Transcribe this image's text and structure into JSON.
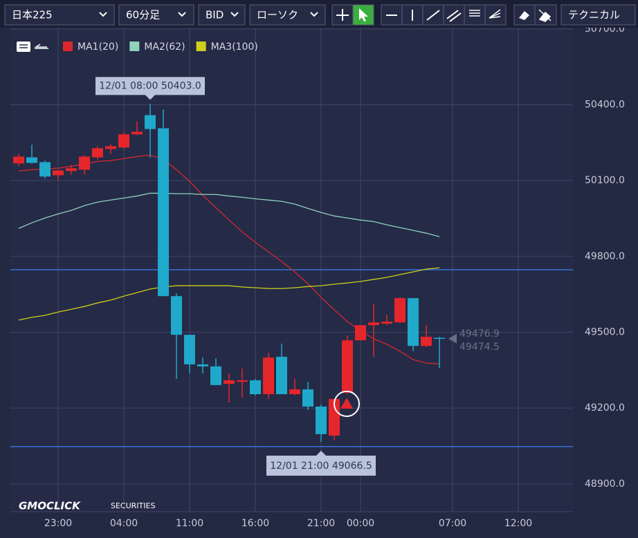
{
  "toolbar": {
    "symbol": "日本225",
    "timeframe": "60分足",
    "price_type": "BID",
    "chart_style": "ローソク",
    "technical": "テクニカル"
  },
  "chart_data": {
    "type": "candlestick",
    "categories": [
      null,
      null,
      null,
      "23:00",
      null,
      null,
      null,
      null,
      "04:00",
      null,
      null,
      null,
      null,
      "11:00",
      null,
      null,
      null,
      null,
      "16:00",
      null,
      null,
      null,
      null,
      "21:00",
      null,
      null,
      "00:00",
      null,
      null,
      null,
      null,
      null,
      null,
      "07:00",
      null,
      null,
      null,
      null,
      "12:00",
      null,
      null,
      null,
      null
    ],
    "open": [
      50168,
      50192,
      50173,
      50121,
      50138,
      50143,
      50192,
      50225,
      50231,
      50283,
      50359,
      50307,
      49643,
      49490,
      49373,
      49365,
      49296,
      49304,
      49310,
      49255,
      49403,
      49255,
      49274,
      49206,
      49091,
      49261,
      49468,
      49528,
      49534,
      49539,
      49635,
      49446,
      49478,
      null,
      null,
      null,
      null,
      null,
      null,
      null,
      null,
      null,
      null
    ],
    "high": [
      50206,
      50242,
      50179,
      50143,
      50162,
      50201,
      50236,
      50244,
      50293,
      50334,
      50403,
      50381,
      49654,
      49490,
      49400,
      49397,
      49337,
      49356,
      49315,
      49419,
      49455,
      49315,
      49304,
      49214,
      49236,
      49487,
      49528,
      49610,
      49569,
      49638,
      49635,
      49528,
      49482,
      null,
      null,
      null,
      null,
      null,
      null,
      null,
      null,
      null,
      null
    ],
    "low": [
      50157,
      50167,
      50108,
      50102,
      50124,
      50124,
      50184,
      50206,
      50225,
      50280,
      50190,
      49643,
      49315,
      49337,
      49337,
      49291,
      49222,
      49241,
      49250,
      49236,
      49255,
      49250,
      49192,
      49066.5,
      49072,
      49255,
      49468,
      49403,
      49528,
      49537,
      49425,
      49441,
      49359,
      null,
      null,
      null,
      null,
      null,
      null,
      null,
      null,
      null,
      null
    ],
    "close": [
      50195,
      50170,
      50116,
      50140,
      50149,
      50195,
      50228,
      50236,
      50283,
      50293,
      50304,
      49643,
      49490,
      49373,
      49365,
      49291,
      49310,
      49310,
      49255,
      49400,
      49255,
      49274,
      49206,
      49097,
      49236,
      49468,
      49528,
      49539,
      49542,
      49635,
      49446,
      49482,
      49474.5,
      null,
      null,
      null,
      null,
      null,
      null,
      null,
      null,
      null,
      null
    ],
    "up_color": "#e5262b",
    "down_color": "#1fa9cb",
    "series": [
      {
        "name": "MA1(20)",
        "color": "#d8282c",
        "values": [
          50138,
          50143,
          50146,
          50149,
          50157,
          50165,
          50176,
          50179,
          50187,
          50195,
          50201,
          50184,
          50143,
          50097,
          50042,
          49993,
          49944,
          49897,
          49856,
          49818,
          49780,
          49739,
          49692,
          49638,
          49589,
          49542,
          49507,
          49474,
          49452,
          49425,
          49392,
          49378,
          49375,
          null,
          null,
          null,
          null,
          null,
          null,
          null,
          null,
          null,
          null
        ]
      },
      {
        "name": "MA2(62)",
        "color": "#8fd3bd",
        "values": [
          49911,
          49933,
          49952,
          49968,
          49982,
          50001,
          50015,
          50023,
          50031,
          50039,
          50050,
          50050,
          50048,
          50048,
          50045,
          50045,
          50039,
          50034,
          50028,
          50023,
          50018,
          50007,
          49990,
          49974,
          49960,
          49952,
          49944,
          49938,
          49925,
          49914,
          49903,
          49892,
          49878,
          null,
          null,
          null,
          null,
          null,
          null,
          null,
          null,
          null,
          null
        ]
      },
      {
        "name": "MA3(100)",
        "color": "#cfcf1a",
        "values": [
          49548,
          49559,
          49567,
          49580,
          49591,
          49602,
          49616,
          49627,
          49643,
          49657,
          49671,
          49679,
          49684,
          49684,
          49684,
          49684,
          49684,
          49679,
          49676,
          49673,
          49673,
          49676,
          49681,
          49684,
          49690,
          49695,
          49701,
          49709,
          49717,
          49728,
          49739,
          49750,
          49755,
          null,
          null,
          null,
          null,
          null,
          null,
          null,
          null,
          null,
          null
        ]
      }
    ],
    "ylim": [
      48790,
      50705
    ],
    "yticks": [
      {
        "value": 48900,
        "label": "48900.0"
      },
      {
        "value": 49200,
        "label": "49200.0"
      },
      {
        "value": 49500,
        "label": "49500.0"
      },
      {
        "value": 49800,
        "label": "49800.0"
      },
      {
        "value": 50100,
        "label": "50100.0"
      },
      {
        "value": 50400,
        "label": "50400.0"
      },
      {
        "value": 50700,
        "label": "50700.0"
      }
    ],
    "grid": true,
    "hlines": [
      49747,
      49048
    ],
    "hline_color": "#3573d6",
    "annotations": [
      "12/01 08:00 50403.0",
      "12/01 21:00 49066.5"
    ],
    "current_price": {
      "values": [
        49476.9,
        49474.5
      ],
      "value_labels": [
        "49476.9",
        "49474.5"
      ]
    },
    "watermark": [
      "GMOCLICK",
      "SECURITIES"
    ]
  }
}
